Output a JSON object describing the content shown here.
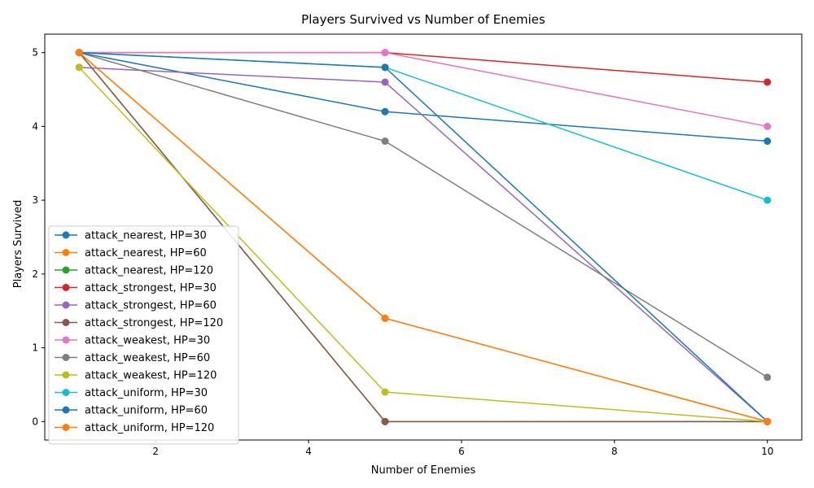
{
  "chart_data": {
    "type": "line",
    "title": "Players Survived vs Number of Enemies",
    "xlabel": "Number of Enemies",
    "ylabel": "Players Survived",
    "xlim": [
      0.55,
      10.45
    ],
    "ylim": [
      -0.25,
      5.25
    ],
    "xticks": [
      2,
      4,
      6,
      8,
      10
    ],
    "yticks": [
      0,
      1,
      2,
      3,
      4,
      5
    ],
    "grid": false,
    "legend_position": "lower-left",
    "x": [
      1,
      5,
      10
    ],
    "series": [
      {
        "name": "attack_nearest, HP=30",
        "color": "#1f77b4",
        "values": [
          5.0,
          4.2,
          3.8
        ]
      },
      {
        "name": "attack_nearest, HP=60",
        "color": "#ff7f0e",
        "values": [
          5.0,
          1.4,
          0.0
        ]
      },
      {
        "name": "attack_nearest, HP=120",
        "color": "#2ca02c",
        "values": [
          5.0,
          0.0,
          0.0
        ]
      },
      {
        "name": "attack_strongest, HP=30",
        "color": "#d62728",
        "values": [
          5.0,
          5.0,
          4.6
        ]
      },
      {
        "name": "attack_strongest, HP=60",
        "color": "#9467bd",
        "values": [
          4.8,
          4.6,
          0.0
        ]
      },
      {
        "name": "attack_strongest, HP=120",
        "color": "#8c564b",
        "values": [
          5.0,
          0.0,
          0.0
        ]
      },
      {
        "name": "attack_weakest, HP=30",
        "color": "#e377c2",
        "values": [
          5.0,
          5.0,
          4.0
        ]
      },
      {
        "name": "attack_weakest, HP=60",
        "color": "#7f7f7f",
        "values": [
          5.0,
          3.8,
          0.6
        ]
      },
      {
        "name": "attack_weakest, HP=120",
        "color": "#bcbd22",
        "values": [
          4.8,
          0.4,
          0.0
        ]
      },
      {
        "name": "attack_uniform, HP=30",
        "color": "#17becf",
        "values": [
          5.0,
          4.8,
          3.0
        ]
      },
      {
        "name": "attack_uniform, HP=60",
        "color": "#1f77b4",
        "values": [
          5.0,
          4.8,
          0.0
        ]
      },
      {
        "name": "attack_uniform, HP=120",
        "color": "#ff7f0e",
        "values": [
          5.0,
          1.4,
          0.0
        ]
      }
    ]
  }
}
